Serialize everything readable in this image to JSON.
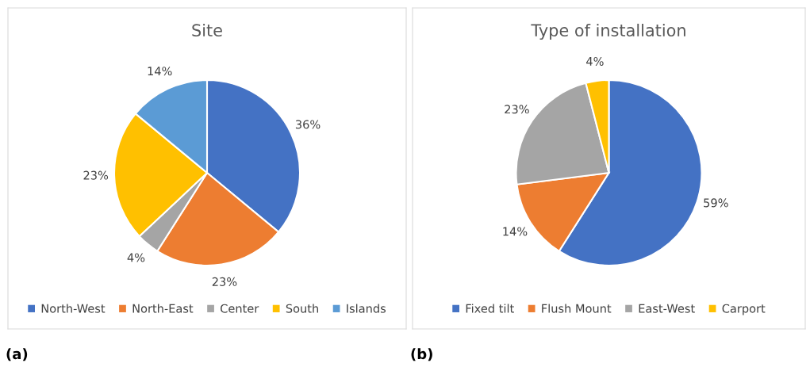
{
  "chart_data": [
    {
      "type": "pie",
      "title": "Site",
      "categories": [
        "North-West",
        "North-East",
        "Center",
        "South",
        "Islands"
      ],
      "values": [
        36,
        23,
        4,
        23,
        14
      ],
      "colors": [
        "#4472c4",
        "#ed7d31",
        "#a5a5a5",
        "#ffc000",
        "#5b9bd5"
      ],
      "value_labels": [
        "36%",
        "23%",
        "4%",
        "23%",
        "14%"
      ],
      "legend": "bottom",
      "annotations": [
        "(a)"
      ]
    },
    {
      "type": "pie",
      "title": "Type of installation",
      "categories": [
        "Fixed tilt",
        "Flush Mount",
        "East-West",
        "Carport"
      ],
      "values": [
        59,
        14,
        23,
        4
      ],
      "colors": [
        "#4472c4",
        "#ed7d31",
        "#a5a5a5",
        "#ffc000"
      ],
      "value_labels": [
        "59%",
        "14%",
        "23%",
        "4%"
      ],
      "legend": "bottom",
      "annotations": [
        "(b)"
      ]
    }
  ]
}
